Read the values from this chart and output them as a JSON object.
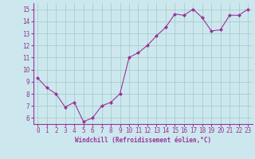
{
  "x": [
    0,
    1,
    2,
    3,
    4,
    5,
    6,
    7,
    8,
    9,
    10,
    11,
    12,
    13,
    14,
    15,
    16,
    17,
    18,
    19,
    20,
    21,
    22,
    23
  ],
  "y": [
    9.3,
    8.5,
    8.0,
    6.9,
    7.3,
    5.7,
    6.0,
    7.0,
    7.3,
    8.0,
    11.0,
    11.4,
    12.0,
    12.8,
    13.5,
    14.6,
    14.5,
    15.0,
    14.3,
    13.2,
    13.3,
    14.5,
    14.5,
    15.0
  ],
  "line_color": "#993399",
  "marker": "D",
  "marker_size": 2.0,
  "bg_color": "#cce8ee",
  "grid_color": "#aacccc",
  "xlabel": "Windchill (Refroidissement éolien,°C)",
  "xlabel_color": "#993399",
  "tick_color": "#993399",
  "axis_color": "#993399",
  "ylim": [
    5.5,
    15.5
  ],
  "xlim": [
    -0.5,
    23.5
  ],
  "yticks": [
    6,
    7,
    8,
    9,
    10,
    11,
    12,
    13,
    14,
    15
  ],
  "xticks": [
    0,
    1,
    2,
    3,
    4,
    5,
    6,
    7,
    8,
    9,
    10,
    11,
    12,
    13,
    14,
    15,
    16,
    17,
    18,
    19,
    20,
    21,
    22,
    23
  ],
  "tick_fontsize": 5.5,
  "xlabel_fontsize": 5.5
}
